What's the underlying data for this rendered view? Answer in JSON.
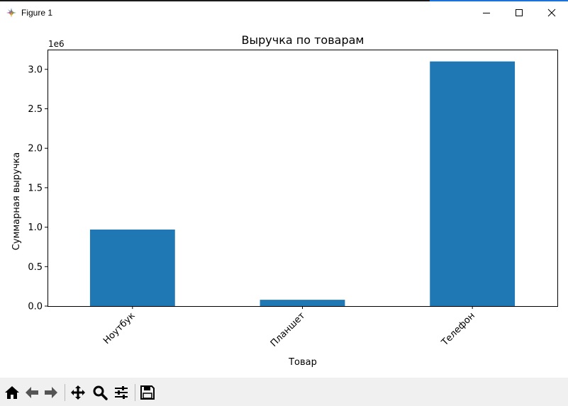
{
  "window": {
    "title": "Figure 1",
    "icon": "matplotlib-icon",
    "controls": [
      "minimize-icon",
      "maximize-icon",
      "close-icon"
    ]
  },
  "colors": {
    "bar": "#1f77b4",
    "accent": "#1a73d9"
  },
  "chart_data": {
    "type": "bar",
    "title": "Выручка по товарам",
    "xlabel": "Товар",
    "ylabel": "Суммарная выручка",
    "offset_label": "1e6",
    "categories": [
      "Ноутбук",
      "Планшет",
      "Телефон"
    ],
    "values": [
      0.97,
      0.08,
      3.1
    ],
    "ylim": [
      0,
      3.25
    ],
    "yticks": [
      0.0,
      0.5,
      1.0,
      1.5,
      2.0,
      2.5,
      3.0
    ],
    "ytick_labels": [
      "0.0",
      "0.5",
      "1.0",
      "1.5",
      "2.0",
      "2.5",
      "3.0"
    ],
    "xtick_rotation": 45,
    "grid": false,
    "legend": "none"
  },
  "toolbar": {
    "buttons": [
      "home-icon",
      "back-icon",
      "forward-icon",
      "pan-icon",
      "zoom-icon",
      "configure-subplots-icon",
      "save-icon"
    ]
  }
}
